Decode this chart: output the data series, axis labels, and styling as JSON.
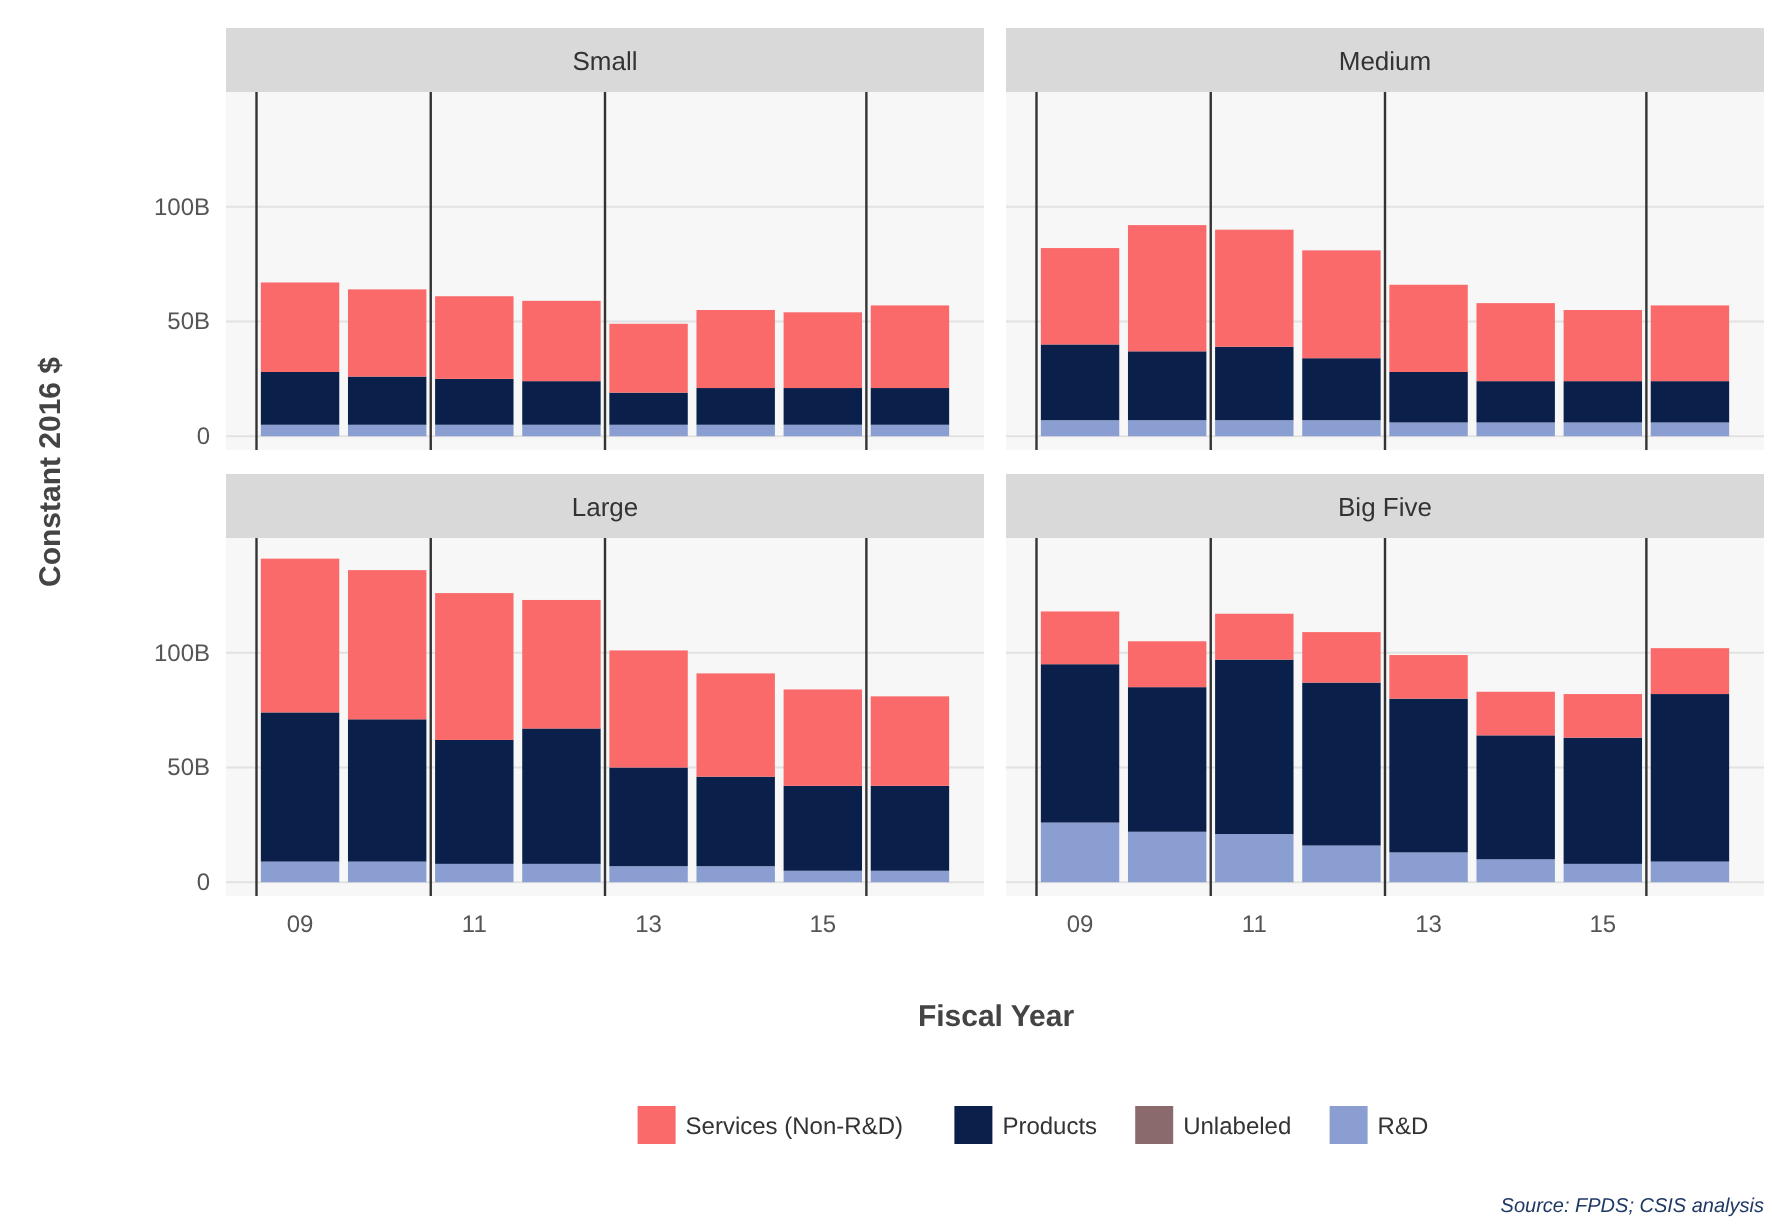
{
  "chart_data": [
    {
      "type": "bar",
      "title": "Small",
      "ylabel": "Constant 2016 $",
      "stacked": true,
      "x": [
        2009,
        2010,
        2011,
        2012,
        2013,
        2014,
        2015,
        2016
      ],
      "xlim": [
        2008.15,
        2016.85
      ],
      "ylim": [
        -6,
        150
      ],
      "yticks": [
        0,
        {
          "value": 50,
          "label": "50B"
        },
        {
          "value": 100,
          "label": "100B"
        }
      ],
      "grid": "y",
      "tick_labels": "y",
      "ref_lines": [
        {
          "axis": "x",
          "value": 2008.5,
          "color": "#333333"
        },
        {
          "axis": "x",
          "value": 2010.5,
          "color": "#333333"
        },
        {
          "axis": "x",
          "value": 2012.5,
          "color": "#333333"
        },
        {
          "axis": "x",
          "value": 2015.5,
          "color": "#333333"
        }
      ],
      "series": [
        {
          "color": "#8b9ed1",
          "values": [
            5,
            5,
            5,
            5,
            5,
            5,
            5,
            5
          ]
        },
        {
          "color": "#8b6a6d",
          "values": [
            0,
            0,
            0,
            0,
            0,
            0,
            0,
            0
          ]
        },
        {
          "color": "#0b1f4b",
          "values": [
            23,
            21,
            20,
            19,
            14,
            16,
            16,
            16
          ]
        },
        {
          "color": "#fb6a6a",
          "values": [
            39,
            38,
            36,
            35,
            30,
            34,
            33,
            36
          ]
        }
      ]
    },
    {
      "type": "bar",
      "title": "Medium",
      "stacked": true,
      "x": [
        2009,
        2010,
        2011,
        2012,
        2013,
        2014,
        2015,
        2016
      ],
      "xlim": [
        2008.15,
        2016.85
      ],
      "ylim": [
        -6,
        150
      ],
      "yticks": [
        {
          "value": 0,
          "label": null
        },
        {
          "value": 50,
          "label": null
        },
        {
          "value": 100,
          "label": null
        }
      ],
      "grid": "y",
      "tick_labels": false,
      "ref_lines": [
        {
          "axis": "x",
          "value": 2008.5,
          "color": "#333333"
        },
        {
          "axis": "x",
          "value": 2010.5,
          "color": "#333333"
        },
        {
          "axis": "x",
          "value": 2012.5,
          "color": "#333333"
        },
        {
          "axis": "x",
          "value": 2015.5,
          "color": "#333333"
        }
      ],
      "series": [
        {
          "color": "#8b9ed1",
          "values": [
            7,
            7,
            7,
            7,
            6,
            6,
            6,
            6
          ]
        },
        {
          "color": "#8b6a6d",
          "values": [
            0,
            0,
            0,
            0,
            0,
            0,
            0,
            0
          ]
        },
        {
          "color": "#0b1f4b",
          "values": [
            33,
            30,
            32,
            27,
            22,
            18,
            18,
            18
          ]
        },
        {
          "color": "#fb6a6a",
          "values": [
            42,
            55,
            51,
            47,
            38,
            34,
            31,
            33
          ]
        }
      ]
    },
    {
      "type": "bar",
      "title": "Large",
      "xlabel": "Fiscal Year",
      "stacked": true,
      "x": [
        2009,
        2010,
        2011,
        2012,
        2013,
        2014,
        2015,
        2016
      ],
      "xlim": [
        2008.15,
        2016.85
      ],
      "xticks": [
        {
          "value": 2009,
          "label": "09"
        },
        {
          "value": 2011,
          "label": "11"
        },
        {
          "value": 2013,
          "label": "13"
        },
        {
          "value": 2015,
          "label": "15"
        }
      ],
      "ylim": [
        -6,
        150
      ],
      "yticks": [
        0,
        {
          "value": 50,
          "label": "50B"
        },
        {
          "value": 100,
          "label": "100B"
        }
      ],
      "grid": "y",
      "ref_lines": [
        {
          "axis": "x",
          "value": 2008.5,
          "color": "#333333"
        },
        {
          "axis": "x",
          "value": 2010.5,
          "color": "#333333"
        },
        {
          "axis": "x",
          "value": 2012.5,
          "color": "#333333"
        },
        {
          "axis": "x",
          "value": 2015.5,
          "color": "#333333"
        }
      ],
      "series": [
        {
          "color": "#8b9ed1",
          "values": [
            9,
            9,
            8,
            8,
            7,
            7,
            5,
            5
          ]
        },
        {
          "color": "#8b6a6d",
          "values": [
            0,
            0,
            0,
            0,
            0,
            0,
            0,
            0
          ]
        },
        {
          "color": "#0b1f4b",
          "values": [
            65,
            62,
            54,
            59,
            43,
            39,
            37,
            37
          ]
        },
        {
          "color": "#fb6a6a",
          "values": [
            67,
            65,
            64,
            56,
            51,
            45,
            42,
            39
          ]
        }
      ]
    },
    {
      "type": "bar",
      "title": "Big Five",
      "stacked": true,
      "legend": "bottom",
      "annotations": [
        "Source: FPDS; CSIS analysis"
      ],
      "x": [
        2009,
        2010,
        2011,
        2012,
        2013,
        2014,
        2015,
        2016
      ],
      "xlim": [
        2008.15,
        2016.85
      ],
      "xticks": [
        {
          "value": 2009,
          "label": "09"
        },
        {
          "value": 2011,
          "label": "11"
        },
        {
          "value": 2013,
          "label": "13"
        },
        {
          "value": 2015,
          "label": "15"
        }
      ],
      "ylim": [
        -6,
        150
      ],
      "yticks": [
        {
          "value": 0,
          "label": null
        },
        {
          "value": 50,
          "label": null
        },
        {
          "value": 100,
          "label": null
        }
      ],
      "grid": "y",
      "tick_labels": "x",
      "ref_lines": [
        {
          "axis": "x",
          "value": 2008.5,
          "color": "#333333"
        },
        {
          "axis": "x",
          "value": 2010.5,
          "color": "#333333"
        },
        {
          "axis": "x",
          "value": 2012.5,
          "color": "#333333"
        },
        {
          "axis": "x",
          "value": 2015.5,
          "color": "#333333"
        }
      ],
      "series": [
        {
          "name": "R&D",
          "color": "#8b9ed1",
          "values": [
            26,
            22,
            21,
            16,
            13,
            10,
            8,
            9
          ]
        },
        {
          "name": "Unlabeled",
          "color": "#8b6a6d",
          "values": [
            0,
            0,
            0,
            0,
            0,
            0,
            0,
            0
          ]
        },
        {
          "name": "Products",
          "color": "#0b1f4b",
          "values": [
            69,
            63,
            76,
            71,
            67,
            54,
            55,
            73
          ]
        },
        {
          "name": "Services (Non-R&D)",
          "color": "#fb6a6a",
          "values": [
            23,
            20,
            20,
            22,
            19,
            19,
            19,
            20
          ]
        }
      ]
    }
  ]
}
